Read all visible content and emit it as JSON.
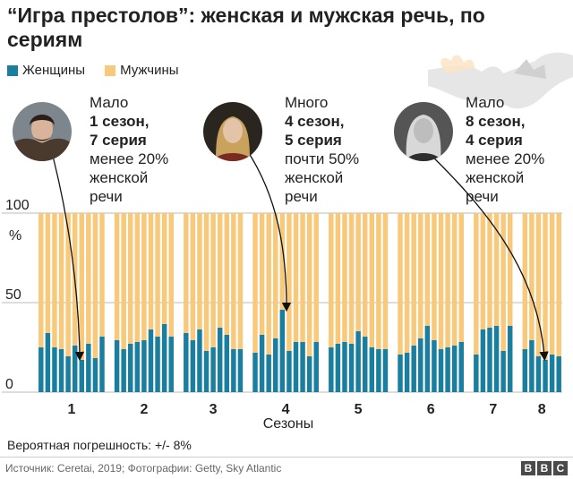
{
  "title": "“Игра престолов”: женская и мужская речь, по сериям",
  "legend": [
    {
      "label": "Женщины",
      "color": "#1a7e9e"
    },
    {
      "label": "Мужчины",
      "color": "#f8c97a"
    }
  ],
  "annotations": [
    {
      "line1": "Мало",
      "line2": "1 сезон,",
      "line3": "7 серия",
      "line4": "менее 20%",
      "line5": "женской",
      "line6": "речи"
    },
    {
      "line1": "Много",
      "line2": "4 сезон,",
      "line3": "5 серия",
      "line4": "почти 50%",
      "line5": "женской",
      "line6": "речи"
    },
    {
      "line1": "Мало",
      "line2": "8 сезон,",
      "line3": "4 серия",
      "line4": "менее 20%",
      "line5": "женской",
      "line6": "речи"
    }
  ],
  "footnote": "Вероятная погрешность: +/- 8%",
  "source": "Источник: Ceretai, 2019; Фотографии: Getty, Sky Atlantic",
  "logo": [
    "B",
    "B",
    "C"
  ],
  "chart_data": {
    "type": "bar",
    "stacked": true,
    "xlabel": "Сезоны",
    "ylabel": "%",
    "ylim": [
      0,
      100
    ],
    "yticks": [
      0,
      50,
      100
    ],
    "seasons": [
      {
        "label": "1",
        "women": [
          25,
          33,
          25,
          24,
          20,
          26,
          18,
          27,
          19,
          31
        ]
      },
      {
        "label": "2",
        "women": [
          29,
          24,
          27,
          28,
          29,
          35,
          31,
          38,
          31
        ]
      },
      {
        "label": "3",
        "women": [
          33,
          29,
          35,
          23,
          25,
          36,
          32,
          24,
          24
        ]
      },
      {
        "label": "4",
        "women": [
          22,
          32,
          21,
          30,
          46,
          23,
          28,
          28,
          20,
          28
        ]
      },
      {
        "label": "5",
        "women": [
          25,
          27,
          28,
          27,
          34,
          31,
          25,
          24,
          24
        ]
      },
      {
        "label": "6",
        "women": [
          21,
          22,
          26,
          30,
          37,
          29,
          24,
          25,
          26,
          28
        ]
      },
      {
        "label": "7",
        "women": [
          21,
          35,
          36,
          37,
          23,
          37
        ]
      },
      {
        "label": "8",
        "women": [
          24,
          29,
          20,
          18,
          21,
          20
        ]
      }
    ],
    "series": [
      {
        "name": "Женщины",
        "color": "#1a7e9e"
      },
      {
        "name": "Мужчины",
        "color": "#f8c97a"
      }
    ]
  }
}
